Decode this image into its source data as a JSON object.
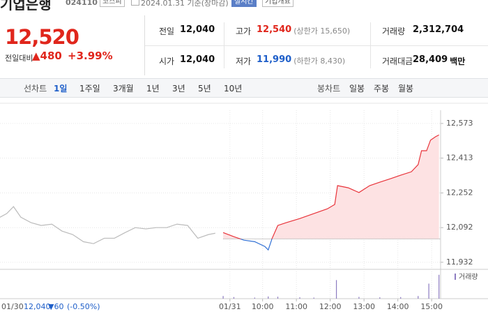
{
  "header": {
    "name": "기업은행",
    "code": "024110",
    "market": "코스피",
    "date": "2024.01.31 기준(장마감)",
    "realtime": "실시간",
    "company": "기업개요"
  },
  "quote": {
    "price": "12,520",
    "change_label": "전일대비",
    "change": "▲480",
    "rate": "+3.99%"
  },
  "info": [
    [
      {
        "label": "전일",
        "value": "12,040"
      },
      {
        "label": "고가",
        "value": "12,540",
        "extra": "(상한가 15,650)",
        "tone": "red"
      },
      {
        "label": "거래량",
        "value": "2,312,704"
      }
    ],
    [
      {
        "label": "시가",
        "value": "12,040"
      },
      {
        "label": "저가",
        "value": "11,990",
        "extra": "(하한가 8,430)",
        "tone": "blue"
      },
      {
        "label": "거래대금",
        "value": "28,409",
        "extra": "백만"
      }
    ]
  ],
  "tabs": {
    "line_label": "선차트",
    "line": [
      "1일",
      "1주일",
      "3개월",
      "1년",
      "3년",
      "5년",
      "10년"
    ],
    "candle_label": "봉차트",
    "candle": [
      "일봉",
      "주봉",
      "월봉"
    ]
  },
  "chart_data": {
    "type": "line",
    "ylim": [
      11909,
      12634
    ],
    "yticks": [
      {
        "value": 11932,
        "label": "11,932"
      },
      {
        "value": 12092,
        "label": "12,092"
      },
      {
        "value": 12252,
        "label": "12,252"
      },
      {
        "value": 12413,
        "label": "12,413"
      },
      {
        "value": 12573,
        "label": "12,573"
      }
    ],
    "xlim": [
      -6,
      860
    ],
    "xticks": [
      {
        "value": 402,
        "label": "01/31"
      },
      {
        "value": 460,
        "label": "10:00"
      },
      {
        "value": 520,
        "label": "11:00"
      },
      {
        "value": 580,
        "label": "12:00"
      },
      {
        "value": 640,
        "label": "13:00"
      },
      {
        "value": 700,
        "label": "14:00"
      },
      {
        "value": 760,
        "label": "15:00"
      }
    ],
    "grid": true,
    "base_value": 12040,
    "series": [
      {
        "color": "#bbbbbb",
        "x": [
          -6,
          6,
          18,
          31,
          49,
          67,
          86,
          104,
          123,
          142,
          160,
          179,
          197,
          216,
          234,
          253,
          271,
          290,
          308,
          327,
          345,
          364,
          376
        ],
        "values": [
          12140,
          12157,
          12189,
          12140,
          12115,
          12102,
          12108,
          12076,
          12060,
          12027,
          12018,
          12043,
          12043,
          12069,
          12092,
          12086,
          12092,
          12092,
          12108,
          12102,
          12043,
          12060,
          12066
        ]
      },
      {
        "color": "#e8333a",
        "color_below": "#2f6fd4",
        "fill": "#fde2e3",
        "x": [
          390,
          409,
          427,
          446,
          464,
          470,
          477,
          487,
          502,
          526,
          551,
          575,
          588,
          593,
          612,
          631,
          650,
          668,
          687,
          705,
          724,
          736,
          742,
          751,
          758,
          767,
          773
        ],
        "values": [
          12069,
          12050,
          12034,
          12027,
          12005,
          11989,
          12043,
          12102,
          12115,
          12134,
          12157,
          12179,
          12199,
          12286,
          12276,
          12254,
          12286,
          12302,
          12318,
          12334,
          12350,
          12383,
          12447,
          12447,
          12496,
          12512,
          12520
        ]
      }
    ],
    "volume": {
      "name": "거래량",
      "color": "#8d7cc1",
      "ylim": [
        0,
        300000
      ],
      "x": [
        390,
        409,
        446,
        470,
        487,
        526,
        551,
        591,
        631,
        668,
        705,
        736,
        755,
        773
      ],
      "values": [
        30000,
        18000,
        12000,
        25000,
        22000,
        15000,
        12000,
        210000,
        20000,
        15000,
        18000,
        30000,
        170000,
        270000
      ]
    },
    "prev_day": {
      "date": "01/30",
      "close": "12,040",
      "change": "▼60",
      "rate": "(-0.50%)"
    }
  }
}
